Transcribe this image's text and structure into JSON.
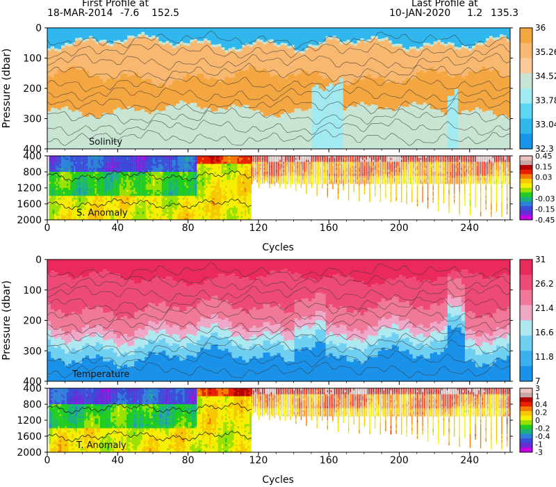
{
  "header": {
    "first_title": "First Profile at",
    "first_date": "18-MAR-2014",
    "first_lat": "-7.6",
    "first_lon": "152.5",
    "last_title": "Last Profile at",
    "last_date": "10-JAN-2020",
    "last_lat": "1.2",
    "last_lon": "135.3"
  },
  "colors": {
    "frame": "#000000",
    "nodata": "#ffffff"
  },
  "chart_data": [
    {
      "id": "salinity",
      "type": "heatmap",
      "label": "Solinity",
      "ylabel": "Pressure (dbar)",
      "xlim": [
        0,
        263
      ],
      "ylim": [
        400,
        0
      ],
      "xticks": [
        0,
        40,
        80,
        120,
        160,
        200,
        240
      ],
      "yticks": [
        0,
        100,
        200,
        300,
        400
      ],
      "colorbar": {
        "labels": [
          "36",
          "35.26",
          "34.52",
          "33.78",
          "33.04",
          "32.3"
        ],
        "colors": [
          "#f4a640",
          "#f8b870",
          "#fbc898",
          "#c8e4d2",
          "#a2eaf2",
          "#5cd6f2",
          "#30b8ee",
          "#1596ea"
        ]
      }
    },
    {
      "id": "salinity_anomaly",
      "type": "heatmap",
      "label": "S. Anomaly",
      "ylim": [
        2000,
        400
      ],
      "yticks": [
        400,
        800,
        1200,
        1600,
        2000
      ],
      "xlim": [
        0,
        263
      ],
      "xticks": [
        0,
        40,
        80,
        120,
        160,
        200,
        240
      ],
      "xticklabels": [
        "0",
        "40",
        "80",
        "120",
        "160",
        "200",
        "240"
      ],
      "xlabel": "Cycles",
      "colorbar": {
        "labels": [
          "0.45",
          "0.15",
          "0.03",
          "0",
          "-0.03",
          "-0.15",
          "-0.45"
        ],
        "colors": [
          "#efc2c2",
          "#c7a6a6",
          "#b30000",
          "#e81e00",
          "#f57a00",
          "#f5c800",
          "#f5ee00",
          "#9ae000",
          "#1fcc1f",
          "#19b27f",
          "#2f80d8",
          "#3a4cd8",
          "#6a2ad8",
          "#c800e6"
        ]
      }
    },
    {
      "id": "temperature",
      "type": "heatmap",
      "label": "Temperature",
      "ylabel": "Pressure (dbar)",
      "xlim": [
        0,
        263
      ],
      "ylim": [
        400,
        0
      ],
      "xticks": [
        0,
        40,
        80,
        120,
        160,
        200,
        240
      ],
      "yticks": [
        0,
        100,
        200,
        300,
        400
      ],
      "colorbar": {
        "labels": [
          "31",
          "26.2",
          "21.4",
          "16.6",
          "11.8",
          "7"
        ],
        "colors": [
          "#ea2a5a",
          "#ee4a78",
          "#f07898",
          "#f0a8c8",
          "#aee8f0",
          "#70d0f2",
          "#3cb0ee",
          "#1a92ea"
        ]
      }
    },
    {
      "id": "temperature_anomaly",
      "type": "heatmap",
      "label": "T. Anomaly",
      "ylim": [
        2000,
        400
      ],
      "yticks": [
        400,
        800,
        1200,
        1600,
        2000
      ],
      "xlim": [
        0,
        263
      ],
      "xticks": [
        0,
        40,
        80,
        120,
        160,
        200,
        240
      ],
      "xticklabels": [
        "0",
        "40",
        "80",
        "120",
        "160",
        "200",
        "240"
      ],
      "xlabel": "Cycles",
      "colorbar": {
        "labels": [
          "3",
          "1",
          "0.4",
          "0.2",
          "0",
          "-0.2",
          "-0.4",
          "-1",
          "-3"
        ],
        "colors": [
          "#efc2c2",
          "#c7a6a6",
          "#b30000",
          "#e81e00",
          "#f57a00",
          "#f5c800",
          "#f5ee00",
          "#9ae000",
          "#1fcc1f",
          "#19b27f",
          "#2f80d8",
          "#3a4cd8",
          "#6a2ad8",
          "#c800e6"
        ]
      }
    }
  ]
}
